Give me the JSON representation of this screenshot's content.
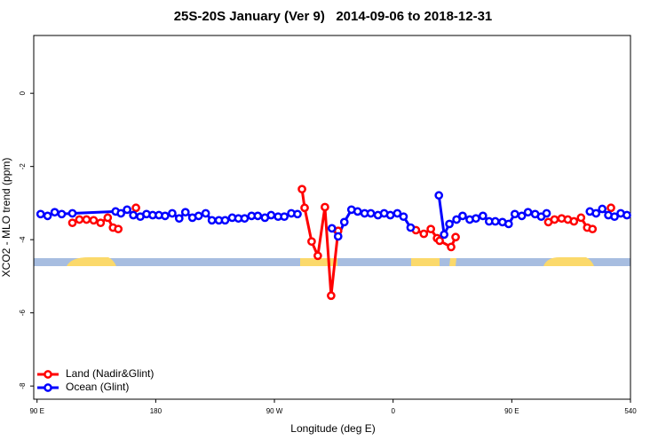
{
  "chart_data": {
    "type": "line",
    "title": "25S-20S January (Ver 9)   2014-09-06 to 2018-12-31",
    "x_label": "Longitude (deg E)",
    "y_label": "XCO2 - MLO trend (ppm)",
    "xlim": [
      87.5,
      540
    ],
    "ylim": [
      -8.36,
      1.58
    ],
    "xticks": [
      {
        "value": 90,
        "label": "90 E"
      },
      180,
      {
        "value": 270,
        "label": "90 W"
      },
      {
        "value": 360,
        "label": "0"
      },
      {
        "value": 450,
        "label": "90 E"
      },
      540
    ],
    "yticks": [
      0,
      -2,
      -4,
      -6,
      -8
    ],
    "legend": "bottom-left",
    "series": [
      {
        "name": "Land (Nadir&Glint)",
        "color": "#ff0000",
        "x": [
          116.8,
          122.1,
          127.5,
          132.9,
          138.2,
          143.6,
          147.6,
          151.6,
          null,
          165.0,
          null,
          290.9,
          292.9,
          298.2,
          302.9,
          308.3,
          313.0,
          318.3,
          null,
          377.3,
          383.3,
          388.6,
          393.3,
          395.3,
          404.0,
          407.4,
          null,
          477.7,
          482.4,
          487.8,
          492.5,
          497.1,
          502.5,
          507.2,
          511.2,
          null,
          525.2
        ],
        "values": [
          -3.54,
          -3.45,
          -3.45,
          -3.47,
          -3.54,
          -3.4,
          -3.67,
          -3.71,
          null,
          -3.13,
          null,
          -2.62,
          -3.13,
          -4.05,
          -4.44,
          -3.11,
          -5.53,
          -3.76,
          null,
          -3.74,
          -3.84,
          -3.71,
          -3.96,
          -4.03,
          -4.2,
          -3.93,
          null,
          -3.52,
          -3.45,
          -3.42,
          -3.45,
          -3.5,
          -3.4,
          -3.67,
          -3.71,
          null,
          -3.13
        ]
      },
      {
        "name": "Ocean (Glint)",
        "color": "#0000ff",
        "x": [
          92.7,
          98.0,
          103.4,
          108.7,
          116.8,
          149.6,
          153.6,
          158.3,
          163.0,
          168.3,
          173.0,
          177.7,
          182.4,
          187.1,
          192.5,
          197.8,
          202.5,
          207.8,
          212.5,
          217.9,
          222.6,
          227.9,
          232.6,
          238.0,
          242.7,
          247.4,
          252.7,
          257.4,
          262.8,
          267.5,
          272.8,
          277.5,
          282.8,
          287.5,
          null,
          313.6,
          318.3,
          323.0,
          328.4,
          333.1,
          338.4,
          343.1,
          348.5,
          353.2,
          357.9,
          363.2,
          367.9,
          373.3,
          null,
          394.7,
          398.7,
          402.7,
          408.1,
          412.7,
          418.1,
          422.8,
          428.1,
          432.8,
          437.5,
          442.9,
          447.6,
          452.3,
          457.6,
          462.3,
          467.7,
          472.3,
          476.4,
          null,
          509.2,
          513.9,
          518.6,
          523.2,
          527.9,
          532.6,
          537.3
        ],
        "values": [
          -3.3,
          -3.35,
          -3.25,
          -3.3,
          -3.28,
          -3.23,
          -3.28,
          -3.18,
          -3.33,
          -3.37,
          -3.3,
          -3.33,
          -3.33,
          -3.35,
          -3.28,
          -3.42,
          -3.25,
          -3.4,
          -3.35,
          -3.28,
          -3.47,
          -3.47,
          -3.47,
          -3.4,
          -3.42,
          -3.42,
          -3.35,
          -3.35,
          -3.4,
          -3.33,
          -3.37,
          -3.37,
          -3.28,
          -3.3,
          null,
          -3.69,
          -3.91,
          -3.52,
          -3.18,
          -3.23,
          -3.28,
          -3.28,
          -3.33,
          -3.28,
          -3.33,
          -3.28,
          -3.37,
          -3.67,
          null,
          -2.79,
          -3.86,
          -3.57,
          -3.45,
          -3.35,
          -3.45,
          -3.42,
          -3.35,
          -3.5,
          -3.5,
          -3.52,
          -3.57,
          -3.3,
          -3.35,
          -3.25,
          -3.3,
          -3.37,
          -3.28,
          null,
          -3.23,
          -3.28,
          -3.16,
          -3.33,
          -3.37,
          -3.28,
          -3.33
        ]
      }
    ]
  }
}
